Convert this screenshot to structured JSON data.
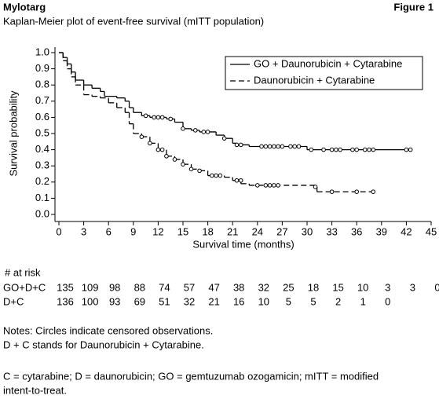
{
  "header": {
    "title": "Mylotarg",
    "figure": "Figure 1"
  },
  "chart_data": {
    "type": "step",
    "title": "Kaplan-Meier plot of event-free survival (mITT population)",
    "x_label": "Survival time (months)",
    "y_label": "Survival probability",
    "xlim": [
      0,
      45
    ],
    "ylim": [
      0,
      1
    ],
    "xticks": [
      0,
      3,
      6,
      9,
      12,
      15,
      18,
      21,
      24,
      27,
      30,
      33,
      36,
      39,
      42,
      45
    ],
    "yticks": [
      {
        "value": 0,
        "label": "0.0"
      },
      0.1,
      0.2,
      0.3,
      0.4,
      0.5,
      0.6,
      0.7,
      0.8,
      0.9,
      {
        "value": 1,
        "label": "1.0"
      }
    ],
    "legend": "upper right",
    "series": [
      {
        "name": "GO + Daunorubicin + Cytarabine",
        "color": "#000000",
        "dash": "solid",
        "x": [
          0,
          0.5,
          1,
          1.5,
          2,
          3,
          4,
          5,
          5.5,
          7,
          8,
          8.5,
          9,
          10,
          11,
          13,
          14,
          15,
          16,
          17,
          19,
          20,
          21,
          21.5,
          23,
          30,
          42.5
        ],
        "values": [
          1.0,
          0.97,
          0.93,
          0.88,
          0.83,
          0.8,
          0.78,
          0.76,
          0.73,
          0.72,
          0.7,
          0.66,
          0.63,
          0.61,
          0.6,
          0.59,
          0.57,
          0.53,
          0.52,
          0.51,
          0.49,
          0.47,
          0.44,
          0.43,
          0.42,
          0.4,
          0.4
        ],
        "censor_x": [
          10.5,
          11.5,
          12,
          12.5,
          13.5,
          15,
          16.5,
          17.5,
          18,
          20,
          21.5,
          22,
          24.5,
          25,
          25.5,
          26,
          26.5,
          27,
          28,
          28.5,
          29,
          30.5,
          32,
          33,
          33.5,
          34,
          35.5,
          36,
          37,
          37.5,
          38,
          42,
          42.5
        ],
        "censor_values": [
          0.61,
          0.6,
          0.6,
          0.6,
          0.59,
          0.53,
          0.52,
          0.51,
          0.51,
          0.47,
          0.43,
          0.43,
          0.42,
          0.42,
          0.42,
          0.42,
          0.42,
          0.42,
          0.42,
          0.42,
          0.42,
          0.4,
          0.4,
          0.4,
          0.4,
          0.4,
          0.4,
          0.4,
          0.4,
          0.4,
          0.4,
          0.4,
          0.4
        ]
      },
      {
        "name": "Daunorubicin + Cytarabine",
        "color": "#000000",
        "dash": "dashed",
        "x": [
          0,
          0.5,
          1,
          1.5,
          2,
          3,
          4,
          5,
          6,
          7,
          8,
          8.5,
          9,
          10,
          11,
          12,
          13,
          14,
          15,
          16,
          17,
          18,
          20,
          21,
          22,
          23,
          31,
          31.2,
          38
        ],
        "values": [
          1.0,
          0.95,
          0.9,
          0.85,
          0.8,
          0.74,
          0.73,
          0.72,
          0.69,
          0.66,
          0.63,
          0.56,
          0.5,
          0.48,
          0.44,
          0.4,
          0.36,
          0.34,
          0.31,
          0.28,
          0.27,
          0.24,
          0.23,
          0.21,
          0.19,
          0.18,
          0.17,
          0.14,
          0.14
        ],
        "censor_x": [
          10,
          11,
          12,
          12.5,
          13,
          14,
          15,
          16,
          17,
          18.5,
          19,
          19.5,
          21.5,
          22,
          24,
          25,
          25.5,
          26,
          26.5,
          31,
          33,
          36,
          38
        ],
        "censor_values": [
          0.48,
          0.44,
          0.4,
          0.4,
          0.36,
          0.34,
          0.31,
          0.28,
          0.27,
          0.24,
          0.24,
          0.24,
          0.21,
          0.21,
          0.18,
          0.18,
          0.18,
          0.18,
          0.18,
          0.17,
          0.14,
          0.14,
          0.14
        ]
      }
    ]
  },
  "at_risk": {
    "title": "# at risk",
    "rows": [
      {
        "label": "GO+D+C",
        "values": [
          135,
          109,
          98,
          88,
          74,
          57,
          47,
          38,
          32,
          25,
          18,
          15,
          10,
          3,
          3,
          0
        ]
      },
      {
        "label": "D+C",
        "values": [
          136,
          100,
          93,
          69,
          51,
          32,
          21,
          16,
          10,
          5,
          5,
          2,
          1,
          0
        ]
      }
    ]
  },
  "notes": [
    "Notes: Circles indicate censored observations.",
    "D + C stands for Daunorubicin + Cytarabine."
  ],
  "footnote": [
    "C = cytarabine; D = daunorubicin; GO = gemtuzumab ozogamicin; mITT = modified",
    "intent-to-treat."
  ]
}
